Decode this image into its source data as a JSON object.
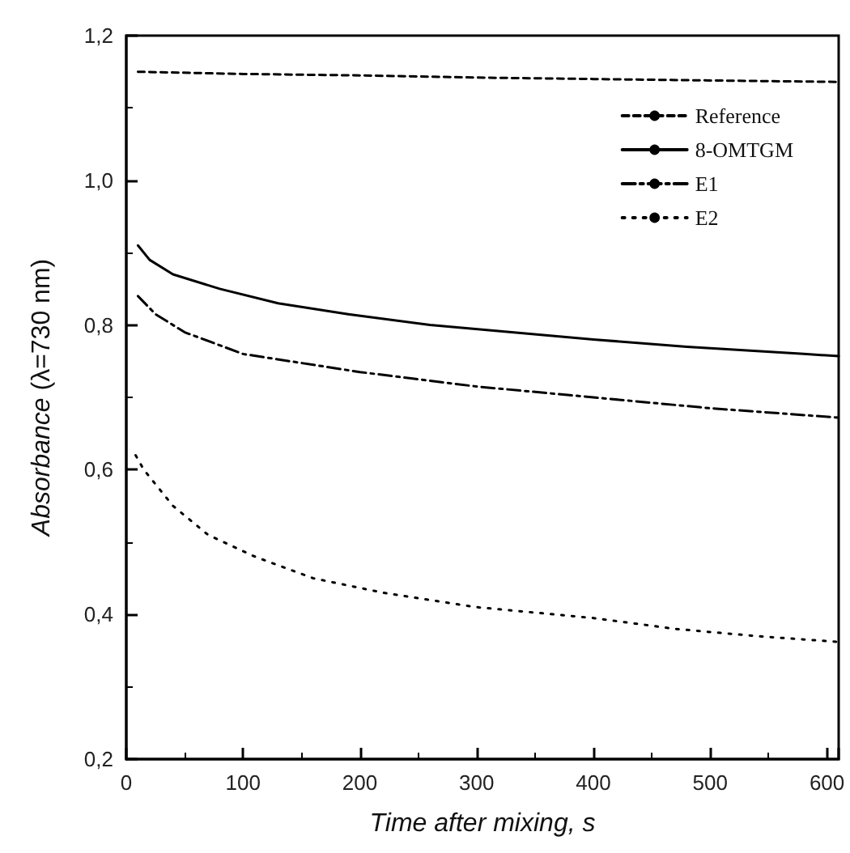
{
  "chart_data": {
    "type": "line",
    "xlabel": "Time after mixing, s",
    "ylabel": "Absorbance (λ=730 nm)",
    "xlim": [
      0,
      610
    ],
    "xticks": [
      0,
      100,
      200,
      300,
      400,
      500,
      600
    ],
    "ylim": [
      0.2,
      1.2
    ],
    "yticks": [
      {
        "value": 0.2,
        "label": "0,2"
      },
      {
        "value": 0.4,
        "label": "0,4"
      },
      {
        "value": 0.6,
        "label": "0,6"
      },
      {
        "value": 0.8,
        "label": "0,8"
      },
      {
        "value": 1.0,
        "label": "1,0"
      },
      {
        "value": 1.2,
        "label": "1,2"
      }
    ],
    "grid": false,
    "legend": "top right",
    "marker": "none",
    "series": [
      {
        "name": "Reference",
        "color": "#000000",
        "line_style": "dashed",
        "x": [
          10,
          100,
          200,
          300,
          400,
          500,
          610
        ],
        "values": [
          1.15,
          1.147,
          1.145,
          1.142,
          1.14,
          1.138,
          1.136
        ]
      },
      {
        "name": "8-OMTGM",
        "color": "#000000",
        "line_style": "solid",
        "x": [
          10,
          20,
          40,
          80,
          130,
          190,
          260,
          330,
          400,
          480,
          580,
          610
        ],
        "values": [
          0.91,
          0.89,
          0.87,
          0.85,
          0.83,
          0.815,
          0.8,
          0.79,
          0.78,
          0.77,
          0.76,
          0.757
        ]
      },
      {
        "name": "E1",
        "color": "#000000",
        "line_style": "dashdot",
        "x": [
          10,
          25,
          50,
          100,
          200,
          300,
          400,
          500,
          610
        ],
        "values": [
          0.84,
          0.815,
          0.79,
          0.76,
          0.735,
          0.715,
          0.7,
          0.685,
          0.672
        ]
      },
      {
        "name": "E2",
        "color": "#000000",
        "line_style": "dotted",
        "x": [
          8,
          15,
          40,
          70,
          110,
          160,
          220,
          300,
          400,
          470,
          540,
          610
        ],
        "values": [
          0.62,
          0.6,
          0.55,
          0.51,
          0.48,
          0.45,
          0.43,
          0.41,
          0.395,
          0.38,
          0.37,
          0.362
        ]
      }
    ]
  }
}
